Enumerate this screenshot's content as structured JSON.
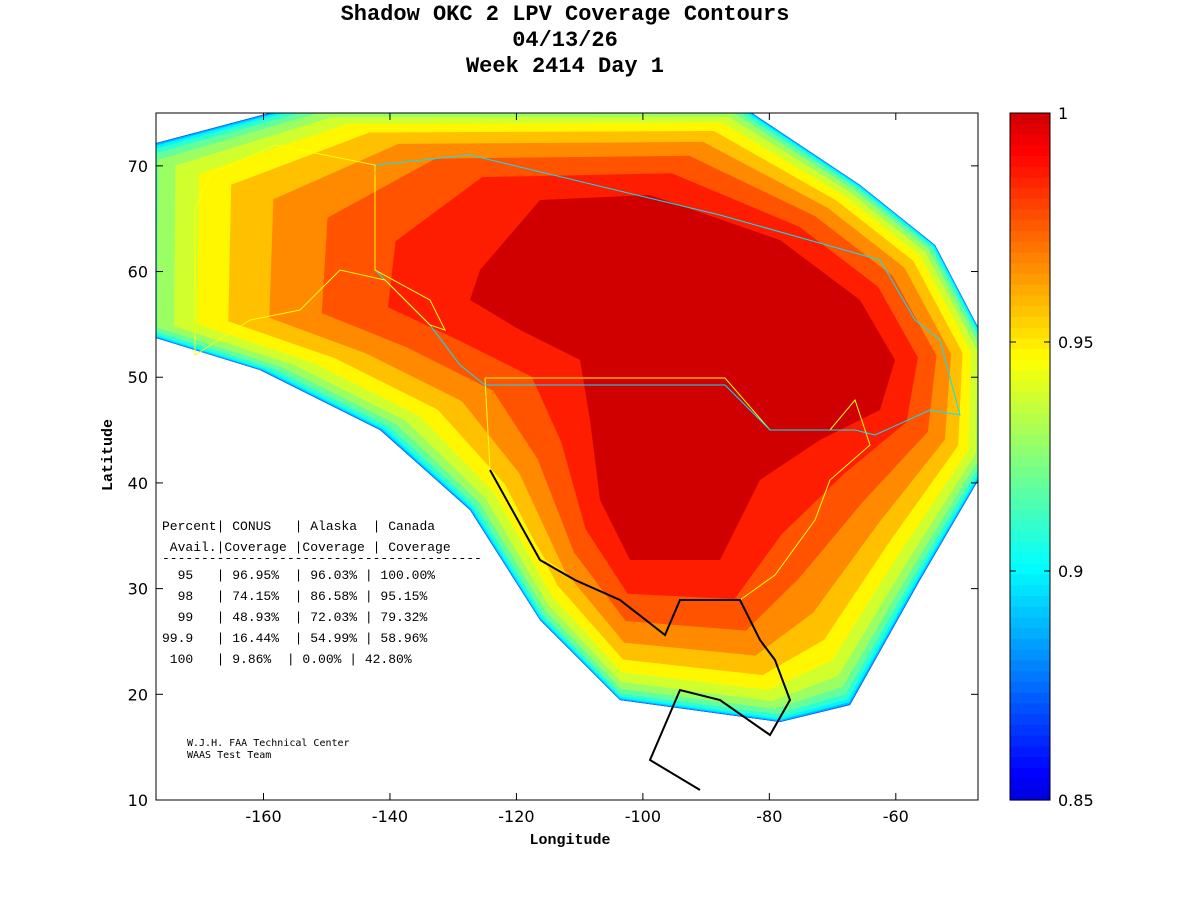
{
  "chart_data": {
    "type": "heatmap",
    "title": [
      "Shadow OKC 2 LPV Coverage Contours",
      "04/13/26",
      "Week 2414 Day 1"
    ],
    "xlabel": "Longitude",
    "ylabel": "Latitude",
    "xlim": [
      -177,
      -47
    ],
    "ylim": [
      10,
      75
    ],
    "xticks": [
      -160,
      -140,
      -120,
      -100,
      -80,
      -60
    ],
    "yticks": [
      10,
      20,
      30,
      40,
      50,
      60,
      70
    ],
    "colorbar": {
      "range": [
        0.85,
        1
      ],
      "ticks": [
        1,
        0.95,
        0.9,
        0.85
      ],
      "colormap": "jet"
    },
    "contour_levels": [
      0.85,
      0.86,
      0.87,
      0.88,
      0.89,
      0.9,
      0.91,
      0.92,
      0.93,
      0.94,
      0.95,
      0.96,
      0.97,
      0.98,
      0.99,
      1.0
    ],
    "table": {
      "header1": "Percent| CONUS   | Alaska  | Canada",
      "header2": " Avail.|Coverage |Coverage | Coverage",
      "separator": "-----------------------------------------",
      "rows": [
        "  95   | 96.95%  | 96.03% | 100.00%",
        "  98   | 74.15%  | 86.58% | 95.15%",
        "  99   | 48.93%  | 72.03% | 79.32%",
        "99.9   | 16.44%  | 54.99% | 58.96%",
        " 100   | 9.86%  | 0.00% | 42.80%"
      ],
      "columns": [
        "Percent Avail.",
        "CONUS Coverage",
        "Alaska Coverage",
        "Canada Coverage"
      ],
      "values": [
        [
          "95",
          "96.95%",
          "96.03%",
          "100.00%"
        ],
        [
          "98",
          "74.15%",
          "86.58%",
          "95.15%"
        ],
        [
          "99",
          "48.93%",
          "72.03%",
          "79.32%"
        ],
        [
          "99.9",
          "16.44%",
          "54.99%",
          "58.96%"
        ],
        [
          "100",
          "9.86%",
          "0.00%",
          "42.80%"
        ]
      ]
    },
    "credit": [
      "W.J.H. FAA Technical Center",
      "WAAS Test Team"
    ]
  }
}
